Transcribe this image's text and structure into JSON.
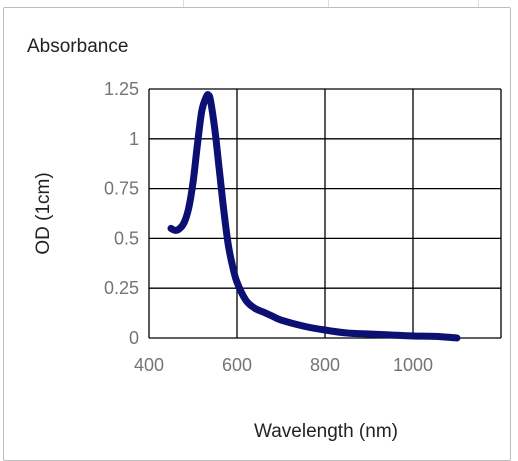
{
  "chart_data": {
    "type": "line",
    "title": "Absorbance",
    "xlabel": "Wavelength (nm)",
    "ylabel": "OD (1cm)",
    "xlim": [
      400,
      1200
    ],
    "ylim": [
      0,
      1.25
    ],
    "x_ticks": [
      400,
      600,
      800,
      1000
    ],
    "x_tick_labels": [
      "400",
      "600",
      "800",
      "1000"
    ],
    "y_ticks": [
      0,
      0.25,
      0.5,
      0.75,
      1,
      1.25
    ],
    "y_tick_labels": [
      "0",
      "0.25",
      "0.5",
      "0.75",
      "1",
      "1.25"
    ],
    "grid": true,
    "legend": "none",
    "series": [
      {
        "color": "#0d1073",
        "x": [
          450,
          460,
          470,
          480,
          490,
          500,
          510,
          520,
          530,
          535,
          540,
          550,
          560,
          570,
          580,
          590,
          600,
          620,
          640,
          660,
          680,
          700,
          750,
          800,
          850,
          900,
          950,
          1000,
          1050,
          1100
        ],
        "y": [
          0.55,
          0.54,
          0.55,
          0.58,
          0.65,
          0.78,
          0.97,
          1.14,
          1.21,
          1.22,
          1.19,
          1.04,
          0.84,
          0.64,
          0.47,
          0.36,
          0.28,
          0.19,
          0.15,
          0.13,
          0.11,
          0.09,
          0.06,
          0.04,
          0.025,
          0.02,
          0.015,
          0.01,
          0.008,
          0.0
        ]
      }
    ]
  }
}
